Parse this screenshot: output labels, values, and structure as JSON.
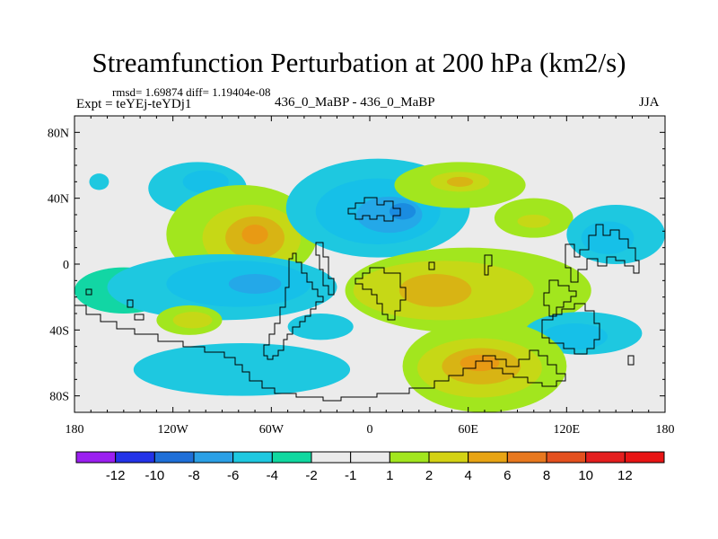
{
  "chart_data": {
    "type": "heatmap",
    "title": "Streamfunction Perturbation at 200 hPa (km2/s)",
    "stats_text": "rmsd= 1.69874 diff= 1.19404e-08",
    "left_label": "Expt = teYEj-teYDj1",
    "center_label": "436_0_MaBP - 436_0_MaBP",
    "right_label": "JJA",
    "x_axis": {
      "range": [
        -180,
        180
      ],
      "ticks": [
        {
          "value": -180,
          "label": "180"
        },
        {
          "value": -120,
          "label": "120W"
        },
        {
          "value": -60,
          "label": "60W"
        },
        {
          "value": 0,
          "label": "0"
        },
        {
          "value": 60,
          "label": "60E"
        },
        {
          "value": 120,
          "label": "120E"
        },
        {
          "value": 180,
          "label": "180"
        }
      ]
    },
    "y_axis": {
      "range": [
        -90,
        90
      ],
      "ticks": [
        {
          "value": 80,
          "label": "80N"
        },
        {
          "value": 40,
          "label": "40N"
        },
        {
          "value": 0,
          "label": "0"
        },
        {
          "value": -40,
          "label": "40S"
        },
        {
          "value": -80,
          "label": "80S"
        }
      ]
    },
    "colorbar": {
      "levels": [
        "-12",
        "-10",
        "-8",
        "-6",
        "-4",
        "-2",
        "-1",
        "1",
        "2",
        "4",
        "6",
        "8",
        "10",
        "12"
      ],
      "colors": [
        "#9b1ff0",
        "#2333e8",
        "#1e6fd8",
        "#2aa0e6",
        "#1ec8e0",
        "#10d8a0",
        "#ebebeb",
        "#ebebeb",
        "#a2e61e",
        "#d4d214",
        "#e8a414",
        "#e8781e",
        "#e4501e",
        "#e41e1e",
        "#e81414"
      ]
    },
    "field_blobs": [
      {
        "lon": -165,
        "lat": 50,
        "rlon": 6,
        "rlat": 5,
        "level": -2
      },
      {
        "lon": -105,
        "lat": 46,
        "rlon": 30,
        "rlat": 16,
        "level": -2
      },
      {
        "lon": -100,
        "lat": 50,
        "rlon": 14,
        "rlat": 7,
        "level": -4
      },
      {
        "lon": -78,
        "lat": 18,
        "rlon": 46,
        "rlat": 30,
        "level": 1
      },
      {
        "lon": -72,
        "lat": 16,
        "rlon": 30,
        "rlat": 20,
        "level": 2
      },
      {
        "lon": -70,
        "lat": 16,
        "rlon": 18,
        "rlat": 13,
        "level": 4
      },
      {
        "lon": -70,
        "lat": 18,
        "rlon": 8,
        "rlat": 6,
        "level": 6
      },
      {
        "lon": -150,
        "lat": -16,
        "rlon": 30,
        "rlat": 14,
        "level": -1
      },
      {
        "lon": -90,
        "lat": -14,
        "rlon": 70,
        "rlat": 20,
        "level": -2
      },
      {
        "lon": -80,
        "lat": -12,
        "rlon": 44,
        "rlat": 14,
        "level": -4
      },
      {
        "lon": -70,
        "lat": -12,
        "rlon": 16,
        "rlat": 6,
        "level": -6
      },
      {
        "lon": -110,
        "lat": -34,
        "rlon": 20,
        "rlat": 9,
        "level": 1
      },
      {
        "lon": -108,
        "lat": -34,
        "rlon": 12,
        "rlat": 5,
        "level": 2
      },
      {
        "lon": -30,
        "lat": -38,
        "rlon": 20,
        "rlat": 8,
        "level": -2
      },
      {
        "lon": -78,
        "lat": -64,
        "rlon": 66,
        "rlat": 16,
        "level": -2
      },
      {
        "lon": 5,
        "lat": 34,
        "rlon": 56,
        "rlat": 30,
        "level": -2
      },
      {
        "lon": 5,
        "lat": 32,
        "rlon": 38,
        "rlat": 20,
        "level": -4
      },
      {
        "lon": 12,
        "lat": 30,
        "rlon": 20,
        "rlat": 11,
        "level": -6
      },
      {
        "lon": 20,
        "lat": 32,
        "rlon": 8,
        "rlat": 5,
        "level": -8
      },
      {
        "lon": 55,
        "lat": 48,
        "rlon": 40,
        "rlat": 14,
        "level": 1
      },
      {
        "lon": 55,
        "lat": 50,
        "rlon": 18,
        "rlat": 6,
        "level": 2
      },
      {
        "lon": 55,
        "lat": 50,
        "rlon": 8,
        "rlat": 3,
        "level": 4
      },
      {
        "lon": 100,
        "lat": 28,
        "rlon": 24,
        "rlat": 12,
        "level": 1
      },
      {
        "lon": 100,
        "lat": 26,
        "rlon": 10,
        "rlat": 4,
        "level": 2
      },
      {
        "lon": 150,
        "lat": 18,
        "rlon": 30,
        "rlat": 18,
        "level": -2
      },
      {
        "lon": 145,
        "lat": 16,
        "rlon": 16,
        "rlat": 10,
        "level": -4
      },
      {
        "lon": 60,
        "lat": -16,
        "rlon": 75,
        "rlat": 26,
        "level": 1
      },
      {
        "lon": 45,
        "lat": -16,
        "rlon": 55,
        "rlat": 18,
        "level": 2
      },
      {
        "lon": 40,
        "lat": -16,
        "rlon": 22,
        "rlat": 10,
        "level": 4
      },
      {
        "lon": 130,
        "lat": -42,
        "rlon": 36,
        "rlat": 13,
        "level": -2
      },
      {
        "lon": 125,
        "lat": -44,
        "rlon": 20,
        "rlat": 8,
        "level": -4
      },
      {
        "lon": 70,
        "lat": -62,
        "rlon": 50,
        "rlat": 28,
        "level": 1
      },
      {
        "lon": 67,
        "lat": -63,
        "rlon": 38,
        "rlat": 18,
        "level": 2
      },
      {
        "lon": 68,
        "lat": -62,
        "rlon": 24,
        "rlat": 11,
        "level": 4
      },
      {
        "lon": 67,
        "lat": -60,
        "rlon": 12,
        "rlat": 5,
        "level": 6
      }
    ]
  }
}
